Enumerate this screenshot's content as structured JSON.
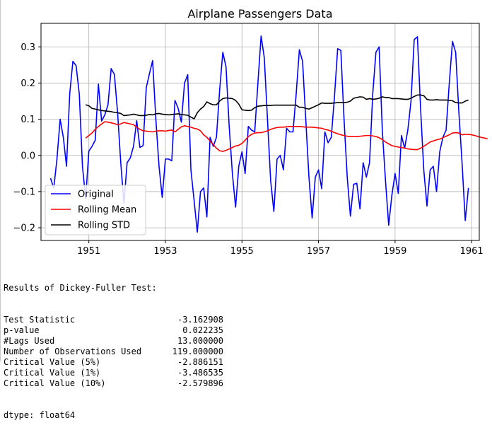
{
  "chart_data": {
    "type": "line",
    "title": "Airplane Passengers Data",
    "xlabel": "",
    "ylabel": "",
    "xlim": [
      1949.75,
      1961.2
    ],
    "ylim": [
      -0.235,
      0.365
    ],
    "xticks": [
      1951,
      1953,
      1955,
      1957,
      1959,
      1961
    ],
    "yticks": [
      -0.2,
      -0.1,
      0.0,
      0.1,
      0.2,
      0.3
    ],
    "ytick_labels": [
      "−0.2",
      "−0.1",
      "0.0",
      "0.1",
      "0.2",
      "0.3"
    ],
    "grid": true,
    "legend_position": "lower-left",
    "x_start": 1950.0,
    "x_step": 0.0833333,
    "series": [
      {
        "name": "Original",
        "color": "#0000ff",
        "values": [
          -0.063,
          -0.091,
          -0.01,
          0.1,
          0.05,
          -0.03,
          0.17,
          0.26,
          0.248,
          0.17,
          -0.03,
          -0.12,
          0.012,
          0.025,
          0.042,
          0.197,
          0.095,
          0.112,
          0.14,
          0.24,
          0.224,
          0.12,
          -0.02,
          -0.133,
          -0.02,
          -0.007,
          0.025,
          0.096,
          0.022,
          0.027,
          0.187,
          0.226,
          0.262,
          0.1,
          -0.03,
          -0.116,
          -0.01,
          -0.01,
          -0.015,
          0.152,
          0.13,
          0.092,
          0.2,
          0.223,
          -0.04,
          -0.125,
          -0.212,
          -0.1,
          -0.09,
          -0.17,
          0.05,
          0.025,
          0.05,
          0.18,
          0.285,
          0.245,
          0.08,
          -0.05,
          -0.143,
          -0.03,
          0.01,
          -0.05,
          0.08,
          0.07,
          0.065,
          0.2,
          0.33,
          0.27,
          0.1,
          -0.07,
          -0.155,
          -0.01,
          0.0,
          -0.04,
          0.075,
          0.065,
          0.065,
          0.17,
          0.292,
          0.26,
          0.1,
          -0.06,
          -0.173,
          -0.06,
          -0.04,
          -0.092,
          0.065,
          0.035,
          0.05,
          0.162,
          0.295,
          0.29,
          0.1,
          -0.06,
          -0.168,
          -0.08,
          -0.077,
          -0.148,
          -0.02,
          -0.06,
          -0.02,
          0.17,
          0.285,
          0.3,
          0.07,
          -0.07,
          -0.193,
          -0.11,
          -0.05,
          -0.105,
          0.055,
          0.02,
          0.07,
          0.15,
          0.32,
          0.328,
          0.13,
          -0.04,
          -0.14,
          -0.04,
          -0.03,
          -0.1,
          0.01,
          0.05,
          0.07,
          0.2,
          0.315,
          0.285,
          0.12,
          -0.02,
          -0.18,
          -0.09
        ]
      },
      {
        "name": "Rolling Mean",
        "color": "#ff0000",
        "values": [
          0.048,
          0.055,
          0.062,
          0.072,
          0.08,
          0.087,
          0.093,
          0.092,
          0.09,
          0.088,
          0.085,
          0.087,
          0.091,
          0.089,
          0.087,
          0.085,
          0.078,
          0.072,
          0.068,
          0.067,
          0.066,
          0.065,
          0.067,
          0.068,
          0.068,
          0.067,
          0.069,
          0.07,
          0.065,
          0.072,
          0.079,
          0.082,
          0.08,
          0.078,
          0.075,
          0.073,
          0.068,
          0.057,
          0.05,
          0.04,
          0.03,
          0.02,
          0.013,
          0.011,
          0.014,
          0.018,
          0.022,
          0.026,
          0.028,
          0.033,
          0.042,
          0.052,
          0.058,
          0.062,
          0.063,
          0.063,
          0.065,
          0.068,
          0.072,
          0.075,
          0.077,
          0.078,
          0.078,
          0.079,
          0.08,
          0.08,
          0.08,
          0.08,
          0.079,
          0.078,
          0.078,
          0.078,
          0.077,
          0.076,
          0.075,
          0.072,
          0.07,
          0.067,
          0.063,
          0.06,
          0.057,
          0.055,
          0.053,
          0.052,
          0.052,
          0.052,
          0.053,
          0.054,
          0.055,
          0.055,
          0.054,
          0.052,
          0.049,
          0.044,
          0.037,
          0.032,
          0.027,
          0.025,
          0.023,
          0.022,
          0.02,
          0.018,
          0.017,
          0.016,
          0.016,
          0.02,
          0.025,
          0.031,
          0.037,
          0.04,
          0.043,
          0.045,
          0.049,
          0.053,
          0.057,
          0.062,
          0.063,
          0.062,
          0.057,
          0.058,
          0.058,
          0.057,
          0.055,
          0.052,
          0.05,
          0.048,
          0.046
        ]
      },
      {
        "name": "Rolling STD",
        "color": "#000000",
        "values": [
          0.14,
          0.137,
          0.13,
          0.128,
          0.126,
          0.124,
          0.123,
          0.122,
          0.121,
          0.119,
          0.118,
          0.116,
          0.11,
          0.111,
          0.112,
          0.114,
          0.112,
          0.11,
          0.11,
          0.111,
          0.113,
          0.112,
          0.115,
          0.116,
          0.114,
          0.113,
          0.112,
          0.113,
          0.114,
          0.115,
          0.113,
          0.112,
          0.111,
          0.106,
          0.101,
          0.118,
          0.128,
          0.135,
          0.148,
          0.143,
          0.14,
          0.14,
          0.15,
          0.157,
          0.159,
          0.158,
          0.157,
          0.152,
          0.142,
          0.126,
          0.125,
          0.124,
          0.125,
          0.132,
          0.136,
          0.137,
          0.138,
          0.138,
          0.138,
          0.139,
          0.139,
          0.139,
          0.139,
          0.139,
          0.139,
          0.139,
          0.139,
          0.133,
          0.133,
          0.13,
          0.128,
          0.132,
          0.136,
          0.14,
          0.145,
          0.144,
          0.144,
          0.144,
          0.145,
          0.146,
          0.146,
          0.146,
          0.147,
          0.15,
          0.158,
          0.16,
          0.162,
          0.161,
          0.155,
          0.157,
          0.155,
          0.156,
          0.158,
          0.162,
          0.16,
          0.16,
          0.157,
          0.157,
          0.157,
          0.156,
          0.155,
          0.155,
          0.158,
          0.163,
          0.167,
          0.167,
          0.165,
          0.155,
          0.153,
          0.153,
          0.154,
          0.153,
          0.153,
          0.153,
          0.152,
          0.151,
          0.146,
          0.145,
          0.145,
          0.15,
          0.153
        ]
      }
    ]
  },
  "adf_results": {
    "heading": "Results of Dickey-Fuller Test:",
    "rows": [
      {
        "name": "Test Statistic",
        "value": "-3.162908"
      },
      {
        "name": "p-value",
        "value": "0.022235"
      },
      {
        "name": "#Lags Used",
        "value": "13.000000"
      },
      {
        "name": "Number of Observations Used",
        "value": "119.000000"
      },
      {
        "name": "Critical Value (5%)",
        "value": "-2.886151"
      },
      {
        "name": "Critical Value (1%)",
        "value": "-3.486535"
      },
      {
        "name": "Critical Value (10%)",
        "value": "-2.579896"
      }
    ],
    "dtype_line": "dtype: float64"
  }
}
